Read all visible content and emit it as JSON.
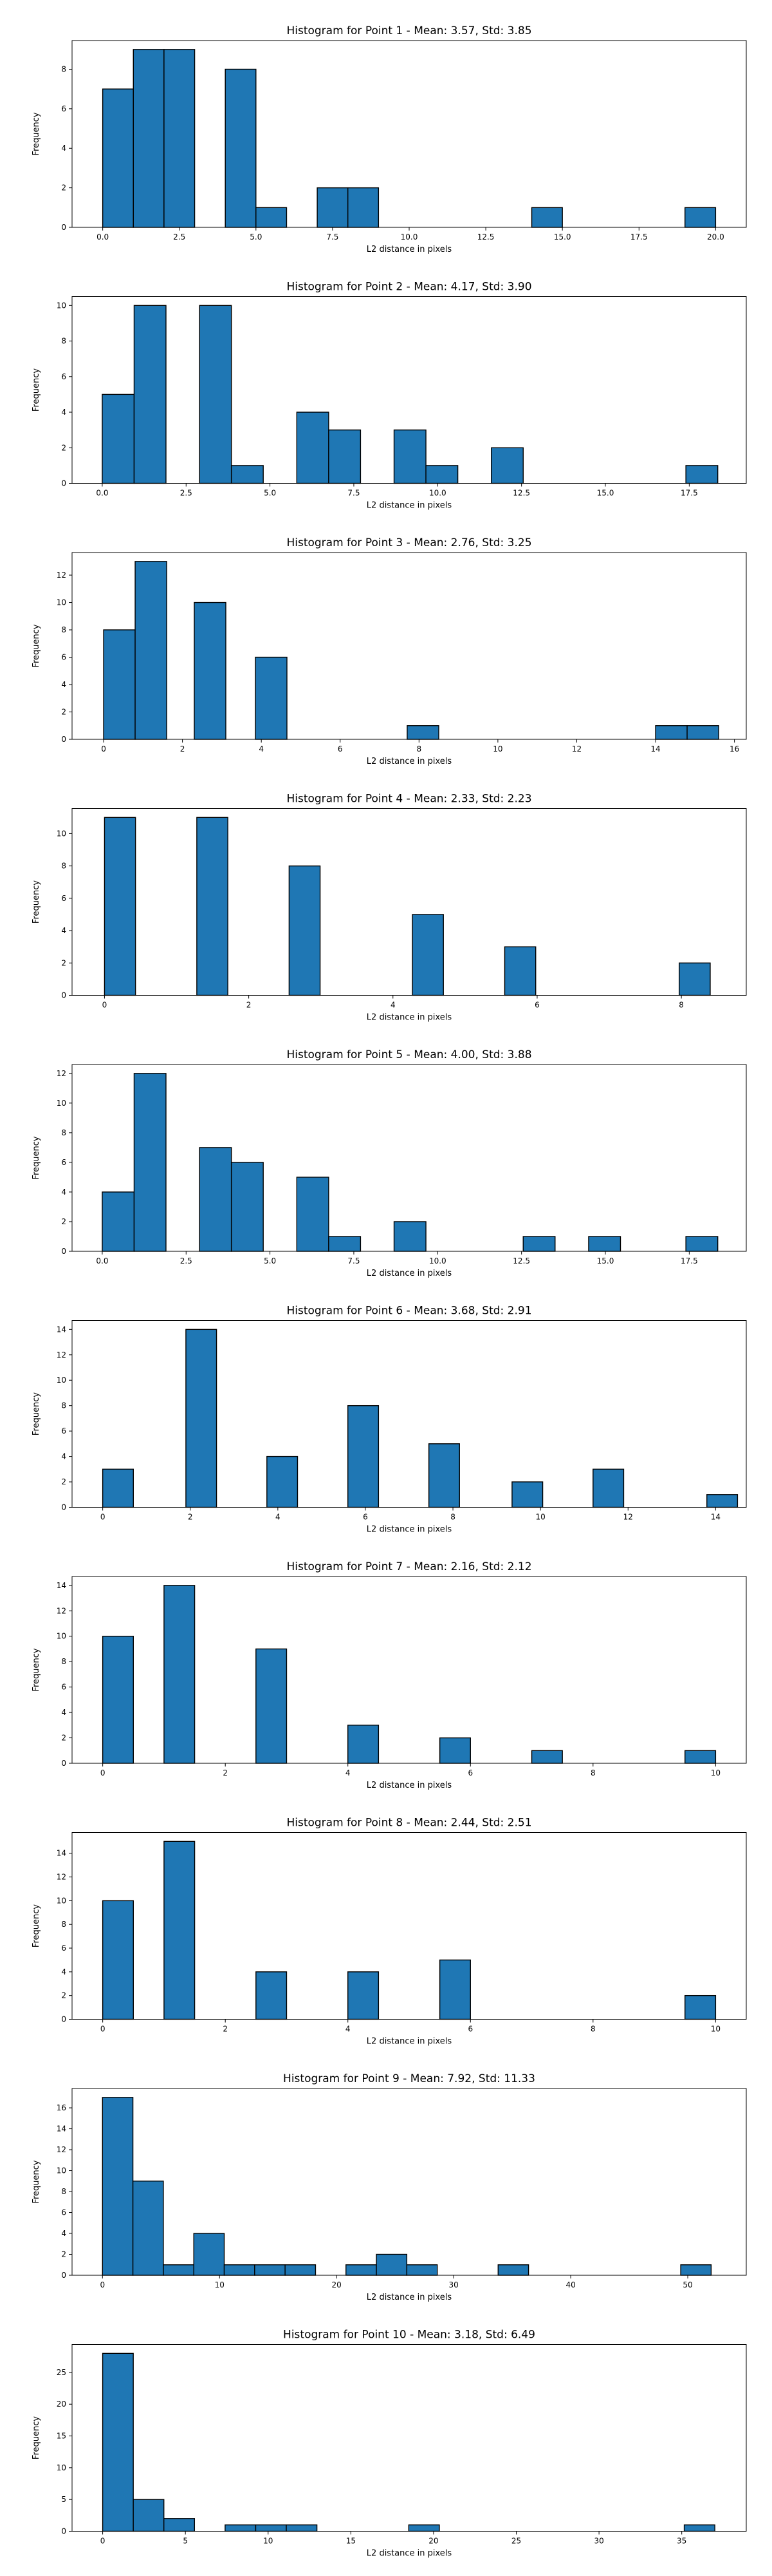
{
  "page": {},
  "chart_data": [
    {
      "type": "bar",
      "title": "Histogram for Point 1 - Mean: 3.57, Std: 3.85",
      "xlabel": "L2 distance in pixels",
      "ylabel": "Frequency",
      "xlim": [
        -1.0,
        21.0
      ],
      "ylim": [
        0,
        9.45
      ],
      "xticks": [
        {
          "v": 0,
          "label": "0.0"
        },
        {
          "v": 2.5,
          "label": "2.5"
        },
        {
          "v": 5,
          "label": "5.0"
        },
        {
          "v": 7.5,
          "label": "7.5"
        },
        {
          "v": 10,
          "label": "10.0"
        },
        {
          "v": 12.5,
          "label": "12.5"
        },
        {
          "v": 15,
          "label": "15.0"
        },
        {
          "v": 17.5,
          "label": "17.5"
        },
        {
          "v": 20,
          "label": "20.0"
        }
      ],
      "yticks": [
        0,
        2,
        4,
        6,
        8
      ],
      "bin_width": 1.0,
      "bins": [
        {
          "x": 0.0,
          "count": 7
        },
        {
          "x": 1.0,
          "count": 9
        },
        {
          "x": 2.0,
          "count": 9
        },
        {
          "x": 4.0,
          "count": 8
        },
        {
          "x": 5.0,
          "count": 1
        },
        {
          "x": 7.0,
          "count": 2
        },
        {
          "x": 8.0,
          "count": 2
        },
        {
          "x": 14.0,
          "count": 1
        },
        {
          "x": 19.0,
          "count": 1
        }
      ],
      "bar_color": "#1f77b4",
      "edge_color": "#000000"
    },
    {
      "type": "bar",
      "title": "Histogram for Point 2 - Mean: 4.17, Std: 3.90",
      "xlabel": "L2 distance in pixels",
      "ylabel": "Frequency",
      "xlim": [
        -0.9,
        19.2
      ],
      "ylim": [
        0,
        10.5
      ],
      "xticks": [
        {
          "v": 0,
          "label": "0.0"
        },
        {
          "v": 2.5,
          "label": "2.5"
        },
        {
          "v": 5,
          "label": "5.0"
        },
        {
          "v": 7.5,
          "label": "7.5"
        },
        {
          "v": 10,
          "label": "10.0"
        },
        {
          "v": 12.5,
          "label": "12.5"
        },
        {
          "v": 15,
          "label": "15.0"
        },
        {
          "v": 17.5,
          "label": "17.5"
        }
      ],
      "yticks": [
        0,
        2,
        4,
        6,
        8,
        10
      ],
      "bin_width": 0.95,
      "bins": [
        {
          "x": 0.0,
          "count": 5
        },
        {
          "x": 0.95,
          "count": 10
        },
        {
          "x": 2.9,
          "count": 10
        },
        {
          "x": 3.85,
          "count": 1
        },
        {
          "x": 5.8,
          "count": 4
        },
        {
          "x": 6.75,
          "count": 3
        },
        {
          "x": 8.7,
          "count": 3
        },
        {
          "x": 9.65,
          "count": 1
        },
        {
          "x": 11.6,
          "count": 2
        },
        {
          "x": 17.4,
          "count": 1
        }
      ],
      "bar_color": "#1f77b4",
      "edge_color": "#000000"
    },
    {
      "type": "bar",
      "title": "Histogram for Point 3 - Mean: 2.76, Std: 3.25",
      "xlabel": "L2 distance in pixels",
      "ylabel": "Frequency",
      "xlim": [
        -0.8,
        16.3
      ],
      "ylim": [
        0,
        13.65
      ],
      "xticks": [
        {
          "v": 0,
          "label": "0"
        },
        {
          "v": 2,
          "label": "2"
        },
        {
          "v": 4,
          "label": "4"
        },
        {
          "v": 6,
          "label": "6"
        },
        {
          "v": 8,
          "label": "8"
        },
        {
          "v": 10,
          "label": "10"
        },
        {
          "v": 12,
          "label": "12"
        },
        {
          "v": 14,
          "label": "14"
        },
        {
          "v": 16,
          "label": "16"
        }
      ],
      "yticks": [
        0,
        2,
        4,
        6,
        8,
        10,
        12
      ],
      "bin_width": 0.8,
      "bins": [
        {
          "x": 0.0,
          "count": 8
        },
        {
          "x": 0.8,
          "count": 13
        },
        {
          "x": 2.3,
          "count": 10
        },
        {
          "x": 3.85,
          "count": 6
        },
        {
          "x": 7.7,
          "count": 1
        },
        {
          "x": 14.0,
          "count": 1
        },
        {
          "x": 14.8,
          "count": 1
        }
      ],
      "bar_color": "#1f77b4",
      "edge_color": "#000000"
    },
    {
      "type": "bar",
      "title": "Histogram for Point 4 - Mean: 2.33, Std: 2.23",
      "xlabel": "L2 distance in pixels",
      "ylabel": "Frequency",
      "xlim": [
        -0.45,
        8.9
      ],
      "ylim": [
        0,
        11.55
      ],
      "xticks": [
        {
          "v": 0,
          "label": "0"
        },
        {
          "v": 2,
          "label": "2"
        },
        {
          "v": 4,
          "label": "4"
        },
        {
          "v": 6,
          "label": "6"
        },
        {
          "v": 8,
          "label": "8"
        }
      ],
      "yticks": [
        0,
        2,
        4,
        6,
        8,
        10
      ],
      "bin_width": 0.43,
      "bins": [
        {
          "x": 0.0,
          "count": 11
        },
        {
          "x": 1.28,
          "count": 11
        },
        {
          "x": 2.56,
          "count": 8
        },
        {
          "x": 4.27,
          "count": 5
        },
        {
          "x": 5.55,
          "count": 3
        },
        {
          "x": 7.97,
          "count": 2
        }
      ],
      "bar_color": "#1f77b4",
      "edge_color": "#000000"
    },
    {
      "type": "bar",
      "title": "Histogram for Point 5 - Mean: 4.00, Std: 3.88",
      "xlabel": "L2 distance in pixels",
      "ylabel": "Frequency",
      "xlim": [
        -0.9,
        19.2
      ],
      "ylim": [
        0,
        12.6
      ],
      "xticks": [
        {
          "v": 0,
          "label": "0.0"
        },
        {
          "v": 2.5,
          "label": "2.5"
        },
        {
          "v": 5,
          "label": "5.0"
        },
        {
          "v": 7.5,
          "label": "7.5"
        },
        {
          "v": 10,
          "label": "10.0"
        },
        {
          "v": 12.5,
          "label": "12.5"
        },
        {
          "v": 15,
          "label": "15.0"
        },
        {
          "v": 17.5,
          "label": "17.5"
        }
      ],
      "yticks": [
        0,
        2,
        4,
        6,
        8,
        10,
        12
      ],
      "bin_width": 0.95,
      "bins": [
        {
          "x": 0.0,
          "count": 4
        },
        {
          "x": 0.95,
          "count": 12
        },
        {
          "x": 2.9,
          "count": 7
        },
        {
          "x": 3.85,
          "count": 6
        },
        {
          "x": 5.8,
          "count": 5
        },
        {
          "x": 6.75,
          "count": 1
        },
        {
          "x": 8.7,
          "count": 2
        },
        {
          "x": 12.55,
          "count": 1
        },
        {
          "x": 14.5,
          "count": 1
        },
        {
          "x": 17.4,
          "count": 1
        }
      ],
      "bar_color": "#1f77b4",
      "edge_color": "#000000"
    },
    {
      "type": "bar",
      "title": "Histogram for Point 6 - Mean: 3.68, Std: 2.91",
      "xlabel": "L2 distance in pixels",
      "ylabel": "Frequency",
      "xlim": [
        -0.7,
        14.7
      ],
      "ylim": [
        0,
        14.7
      ],
      "xticks": [
        {
          "v": 0,
          "label": "0"
        },
        {
          "v": 2,
          "label": "2"
        },
        {
          "v": 4,
          "label": "4"
        },
        {
          "v": 6,
          "label": "6"
        },
        {
          "v": 8,
          "label": "8"
        },
        {
          "v": 10,
          "label": "10"
        },
        {
          "v": 12,
          "label": "12"
        },
        {
          "v": 14,
          "label": "14"
        }
      ],
      "yticks": [
        0,
        2,
        4,
        6,
        8,
        10,
        12,
        14
      ],
      "bin_width": 0.7,
      "bins": [
        {
          "x": 0.0,
          "count": 3
        },
        {
          "x": 1.9,
          "count": 14
        },
        {
          "x": 3.75,
          "count": 4
        },
        {
          "x": 5.6,
          "count": 8
        },
        {
          "x": 7.45,
          "count": 5
        },
        {
          "x": 9.35,
          "count": 2
        },
        {
          "x": 11.2,
          "count": 3
        },
        {
          "x": 13.8,
          "count": 1
        }
      ],
      "bar_color": "#1f77b4",
      "edge_color": "#000000"
    },
    {
      "type": "bar",
      "title": "Histogram for Point 7 - Mean: 2.16, Std: 2.12",
      "xlabel": "L2 distance in pixels",
      "ylabel": "Frequency",
      "xlim": [
        -0.5,
        10.5
      ],
      "ylim": [
        0,
        14.7
      ],
      "xticks": [
        {
          "v": 0,
          "label": "0"
        },
        {
          "v": 2,
          "label": "2"
        },
        {
          "v": 4,
          "label": "4"
        },
        {
          "v": 6,
          "label": "6"
        },
        {
          "v": 8,
          "label": "8"
        },
        {
          "v": 10,
          "label": "10"
        }
      ],
      "yticks": [
        0,
        2,
        4,
        6,
        8,
        10,
        12,
        14
      ],
      "bin_width": 0.5,
      "bins": [
        {
          "x": 0.0,
          "count": 10
        },
        {
          "x": 1.0,
          "count": 14
        },
        {
          "x": 2.5,
          "count": 9
        },
        {
          "x": 4.0,
          "count": 3
        },
        {
          "x": 5.5,
          "count": 2
        },
        {
          "x": 7.0,
          "count": 1
        },
        {
          "x": 9.5,
          "count": 1
        }
      ],
      "bar_color": "#1f77b4",
      "edge_color": "#000000"
    },
    {
      "type": "bar",
      "title": "Histogram for Point 8 - Mean: 2.44, Std: 2.51",
      "xlabel": "L2 distance in pixels",
      "ylabel": "Frequency",
      "xlim": [
        -0.5,
        10.5
      ],
      "ylim": [
        0,
        15.75
      ],
      "xticks": [
        {
          "v": 0,
          "label": "0"
        },
        {
          "v": 2,
          "label": "2"
        },
        {
          "v": 4,
          "label": "4"
        },
        {
          "v": 6,
          "label": "6"
        },
        {
          "v": 8,
          "label": "8"
        },
        {
          "v": 10,
          "label": "10"
        }
      ],
      "yticks": [
        0,
        2,
        4,
        6,
        8,
        10,
        12,
        14
      ],
      "bin_width": 0.5,
      "bins": [
        {
          "x": 0.0,
          "count": 10
        },
        {
          "x": 1.0,
          "count": 15
        },
        {
          "x": 2.5,
          "count": 4
        },
        {
          "x": 4.0,
          "count": 4
        },
        {
          "x": 5.5,
          "count": 5
        },
        {
          "x": 9.5,
          "count": 2
        }
      ],
      "bar_color": "#1f77b4",
      "edge_color": "#000000"
    },
    {
      "type": "bar",
      "title": "Histogram for Point 9 - Mean: 7.92, Std: 11.33",
      "xlabel": "L2 distance in pixels",
      "ylabel": "Frequency",
      "xlim": [
        -2.6,
        55.0
      ],
      "ylim": [
        0,
        17.85
      ],
      "xticks": [
        {
          "v": 0,
          "label": "0"
        },
        {
          "v": 10,
          "label": "10"
        },
        {
          "v": 20,
          "label": "20"
        },
        {
          "v": 30,
          "label": "30"
        },
        {
          "v": 40,
          "label": "40"
        },
        {
          "v": 50,
          "label": "50"
        }
      ],
      "yticks": [
        0,
        2,
        4,
        6,
        8,
        10,
        12,
        14,
        16
      ],
      "bin_width": 2.6,
      "bins": [
        {
          "x": 0.0,
          "count": 17
        },
        {
          "x": 2.6,
          "count": 9
        },
        {
          "x": 5.2,
          "count": 1
        },
        {
          "x": 7.8,
          "count": 4
        },
        {
          "x": 10.4,
          "count": 1
        },
        {
          "x": 13.0,
          "count": 1
        },
        {
          "x": 15.6,
          "count": 1
        },
        {
          "x": 20.8,
          "count": 1
        },
        {
          "x": 23.4,
          "count": 2
        },
        {
          "x": 26.0,
          "count": 1
        },
        {
          "x": 33.8,
          "count": 1
        },
        {
          "x": 49.4,
          "count": 1
        }
      ],
      "bar_color": "#1f77b4",
      "edge_color": "#000000"
    },
    {
      "type": "bar",
      "title": "Histogram for Point 10 - Mean: 3.18, Std: 6.49",
      "xlabel": "L2 distance in pixels",
      "ylabel": "Frequency",
      "xlim": [
        -1.85,
        38.9
      ],
      "ylim": [
        0,
        29.4
      ],
      "xticks": [
        {
          "v": 0,
          "label": "0"
        },
        {
          "v": 5,
          "label": "5"
        },
        {
          "v": 10,
          "label": "10"
        },
        {
          "v": 15,
          "label": "15"
        },
        {
          "v": 20,
          "label": "20"
        },
        {
          "v": 25,
          "label": "25"
        },
        {
          "v": 30,
          "label": "30"
        },
        {
          "v": 35,
          "label": "35"
        }
      ],
      "yticks": [
        0,
        5,
        10,
        15,
        20,
        25
      ],
      "bin_width": 1.85,
      "bins": [
        {
          "x": 0.0,
          "count": 28
        },
        {
          "x": 1.85,
          "count": 5
        },
        {
          "x": 3.7,
          "count": 2
        },
        {
          "x": 7.4,
          "count": 1
        },
        {
          "x": 9.25,
          "count": 1
        },
        {
          "x": 11.1,
          "count": 1
        },
        {
          "x": 18.5,
          "count": 1
        },
        {
          "x": 35.15,
          "count": 1
        }
      ],
      "bar_color": "#1f77b4",
      "edge_color": "#000000"
    }
  ]
}
